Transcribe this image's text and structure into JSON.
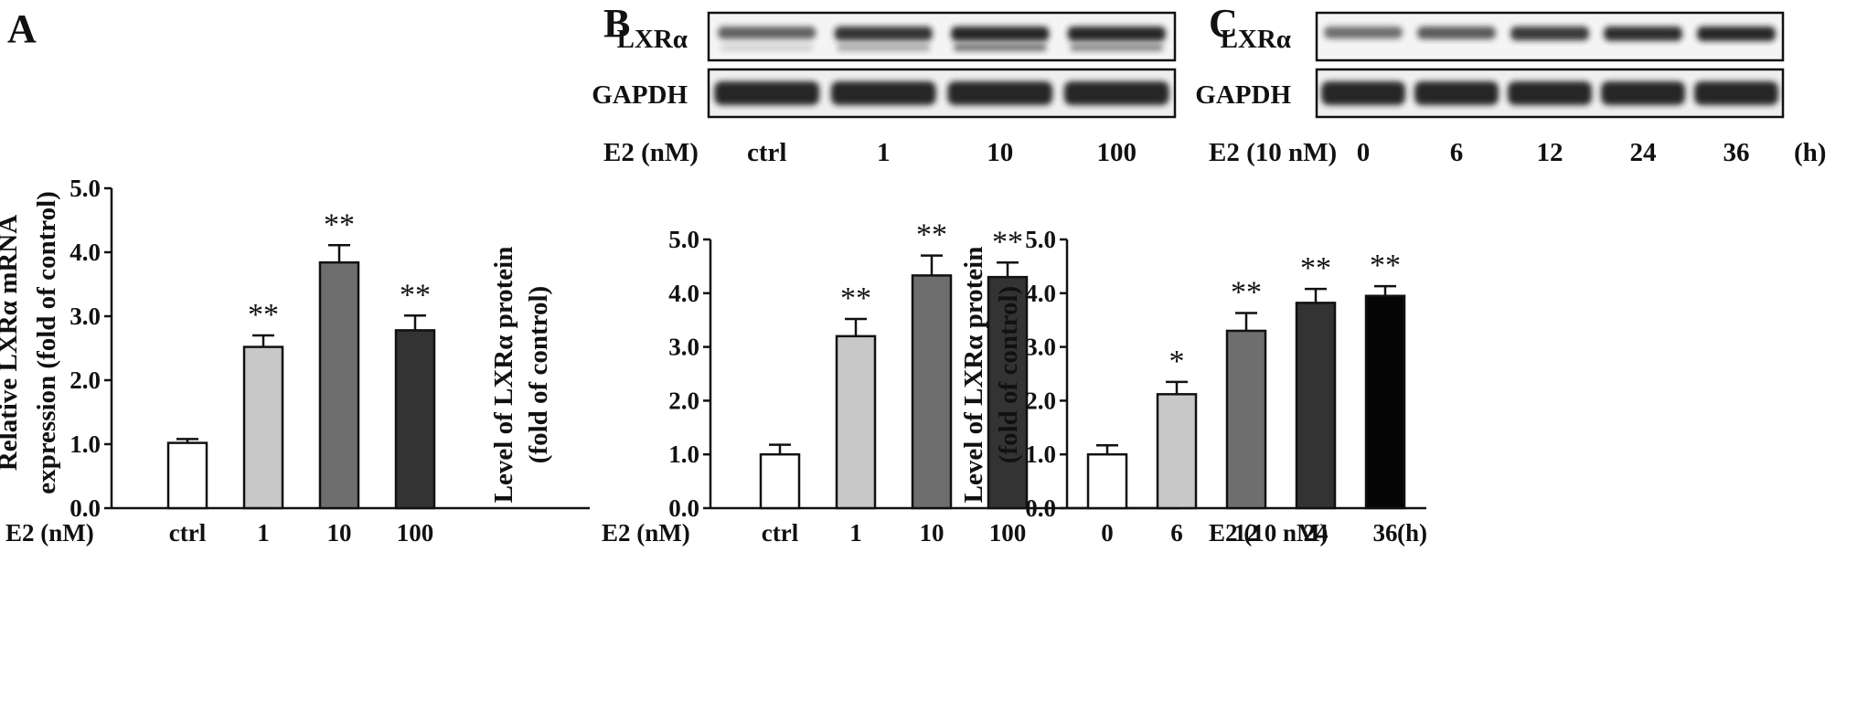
{
  "colors": {
    "bar_fills": [
      "#ffffff",
      "#c8c8c8",
      "#6e6e6e",
      "#333333",
      "#050505"
    ],
    "axis": "#111111",
    "blot_band": "#1a1a1a"
  },
  "chart_data": [
    {
      "panel": "A",
      "type": "bar",
      "categories": [
        "ctrl",
        "1",
        "10",
        "100"
      ],
      "values": [
        1.02,
        2.52,
        3.84,
        2.78
      ],
      "errors": [
        0.06,
        0.18,
        0.27,
        0.23
      ],
      "significance": [
        "",
        "**",
        "**",
        "**"
      ],
      "x_axis_title": "E2 (nM)",
      "ylabel_lines": [
        "Relative LXRα  mRNA",
        "expression (fold of control)"
      ],
      "yticks": [
        "0.0",
        "1.0",
        "2.0",
        "3.0",
        "4.0",
        "5.0"
      ],
      "ylim": [
        0,
        5
      ],
      "grid": false
    },
    {
      "panel": "B",
      "type": "bar",
      "categories": [
        "ctrl",
        "1",
        "10",
        "100"
      ],
      "values": [
        1.0,
        3.2,
        4.33,
        4.3
      ],
      "errors": [
        0.18,
        0.32,
        0.37,
        0.27
      ],
      "significance": [
        "",
        "**",
        "**",
        "**"
      ],
      "x_axis_title": "E2 (nM)",
      "ylabel_lines": [
        "Level of LXRα protein",
        "(fold of control)"
      ],
      "yticks": [
        "0.0",
        "1.0",
        "2.0",
        "3.0",
        "4.0",
        "5.0"
      ],
      "ylim": [
        0,
        5
      ],
      "grid": false,
      "blot": {
        "rows": [
          "LXRα",
          "GAPDH"
        ],
        "treatment_label": "E2 (nM)",
        "lanes": [
          "ctrl",
          "1",
          "10",
          "100"
        ]
      }
    },
    {
      "panel": "C",
      "type": "bar",
      "categories": [
        "0",
        "6",
        "12",
        "24",
        "36"
      ],
      "unit_suffix": "(h)",
      "values": [
        1.0,
        2.12,
        3.3,
        3.82,
        3.95
      ],
      "errors": [
        0.17,
        0.23,
        0.33,
        0.26,
        0.18
      ],
      "significance": [
        "",
        "*",
        "**",
        "**",
        "**"
      ],
      "x_axis_title": "E2 (10 nM)",
      "ylabel_lines": [
        "Level of LXRα protein",
        "(fold of control)"
      ],
      "yticks": [
        "0.0",
        "1.0",
        "2.0",
        "3.0",
        "4.0",
        "5.0"
      ],
      "ylim": [
        0,
        5
      ],
      "grid": false,
      "blot": {
        "rows": [
          "LXRα",
          "GAPDH"
        ],
        "treatment_label": "E2 (10 nM)",
        "lanes": [
          "0",
          "6",
          "12",
          "24",
          "36"
        ],
        "unit_suffix": "(h)"
      }
    }
  ]
}
